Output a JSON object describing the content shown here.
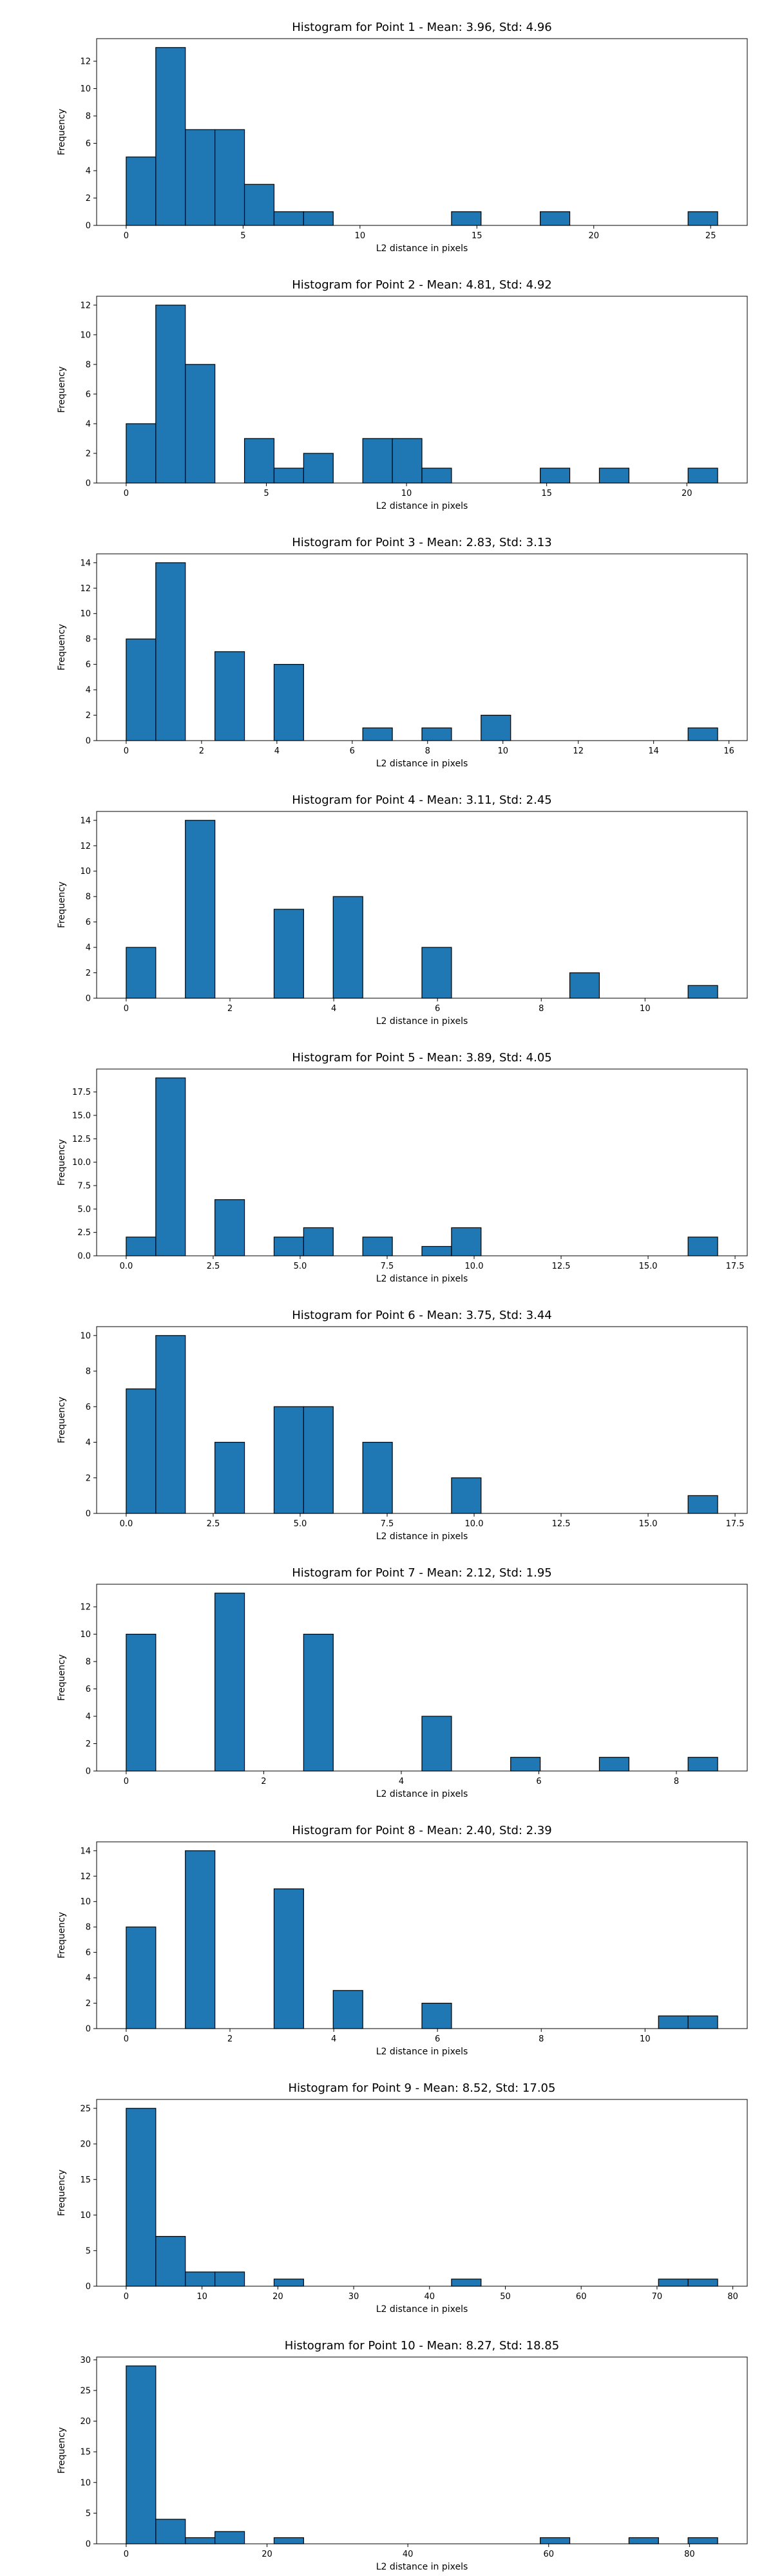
{
  "chart_data": [
    {
      "type": "bar",
      "title": "Histogram for Point 1 - Mean: 3.96, Std: 4.96",
      "xlabel": "L2 distance in pixels",
      "ylabel": "Frequency",
      "bin_min": 0,
      "bin_max": 25.3,
      "bins": 20,
      "values": [
        5,
        13,
        7,
        7,
        3,
        1,
        1,
        0,
        0,
        0,
        0,
        1,
        0,
        0,
        1,
        0,
        0,
        0,
        0,
        1
      ],
      "xlim": [
        -1.265,
        26.565
      ],
      "ylim": [
        0,
        13.65
      ],
      "xticks": [
        0,
        5,
        10,
        15,
        20,
        25
      ],
      "yticks": [
        0,
        2,
        4,
        6,
        8,
        10,
        12
      ],
      "tick_labels_x": [
        "0",
        "5",
        "10",
        "15",
        "20",
        "25"
      ],
      "tick_labels_y": [
        "0",
        "2",
        "4",
        "6",
        "8",
        "10",
        "12"
      ],
      "color": "#1f77b4",
      "edgecolor": "#000000"
    },
    {
      "type": "bar",
      "title": "Histogram for Point 2 - Mean: 4.81, Std: 4.92",
      "xlabel": "L2 distance in pixels",
      "ylabel": "Frequency",
      "bin_min": 0,
      "bin_max": 21.1,
      "bins": 20,
      "values": [
        4,
        12,
        8,
        0,
        3,
        1,
        2,
        0,
        3,
        3,
        1,
        0,
        0,
        0,
        1,
        0,
        1,
        0,
        0,
        1
      ],
      "xlim": [
        -1.055,
        22.155
      ],
      "ylim": [
        0,
        12.6
      ],
      "xticks": [
        0,
        5,
        10,
        15,
        20
      ],
      "yticks": [
        0,
        2,
        4,
        6,
        8,
        10,
        12
      ],
      "tick_labels_x": [
        "0",
        "5",
        "10",
        "15",
        "20"
      ],
      "tick_labels_y": [
        "0",
        "2",
        "4",
        "6",
        "8",
        "10",
        "12"
      ],
      "color": "#1f77b4",
      "edgecolor": "#000000"
    },
    {
      "type": "bar",
      "title": "Histogram for Point 3 - Mean: 2.83, Std: 3.13",
      "xlabel": "L2 distance in pixels",
      "ylabel": "Frequency",
      "bin_min": 0,
      "bin_max": 15.7,
      "bins": 20,
      "values": [
        8,
        14,
        0,
        7,
        0,
        6,
        0,
        0,
        1,
        0,
        1,
        0,
        2,
        0,
        0,
        0,
        0,
        0,
        0,
        1
      ],
      "xlim": [
        -0.785,
        16.485
      ],
      "ylim": [
        0,
        14.7
      ],
      "xticks": [
        0,
        2,
        4,
        6,
        8,
        10,
        12,
        14,
        16
      ],
      "yticks": [
        0,
        2,
        4,
        6,
        8,
        10,
        12,
        14
      ],
      "tick_labels_x": [
        "0",
        "2",
        "4",
        "6",
        "8",
        "10",
        "12",
        "14",
        "16"
      ],
      "tick_labels_y": [
        "0",
        "2",
        "4",
        "6",
        "8",
        "10",
        "12",
        "14"
      ],
      "color": "#1f77b4",
      "edgecolor": "#000000"
    },
    {
      "type": "bar",
      "title": "Histogram for Point 4 - Mean: 3.11, Std: 2.45",
      "xlabel": "L2 distance in pixels",
      "ylabel": "Frequency",
      "bin_min": 0,
      "bin_max": 11.4,
      "bins": 20,
      "values": [
        4,
        0,
        14,
        0,
        0,
        7,
        0,
        8,
        0,
        0,
        4,
        0,
        0,
        0,
        0,
        2,
        0,
        0,
        0,
        1
      ],
      "xlim": [
        -0.57,
        11.97
      ],
      "ylim": [
        0,
        14.7
      ],
      "xticks": [
        0,
        2,
        4,
        6,
        8,
        10
      ],
      "yticks": [
        0,
        2,
        4,
        6,
        8,
        10,
        12,
        14
      ],
      "tick_labels_x": [
        "0",
        "2",
        "4",
        "6",
        "8",
        "10"
      ],
      "tick_labels_y": [
        "0",
        "2",
        "4",
        "6",
        "8",
        "10",
        "12",
        "14"
      ],
      "color": "#1f77b4",
      "edgecolor": "#000000"
    },
    {
      "type": "bar",
      "title": "Histogram for Point 5 - Mean: 3.89, Std: 4.05",
      "xlabel": "L2 distance in pixels",
      "ylabel": "Frequency",
      "bin_min": 0,
      "bin_max": 17.0,
      "bins": 20,
      "values": [
        2,
        19,
        0,
        6,
        0,
        2,
        3,
        0,
        2,
        0,
        1,
        3,
        0,
        0,
        0,
        0,
        0,
        0,
        0,
        2
      ],
      "xlim": [
        -0.85,
        17.85
      ],
      "ylim": [
        0,
        19.95
      ],
      "xticks": [
        0,
        2.5,
        5,
        7.5,
        10,
        12.5,
        15,
        17.5
      ],
      "yticks": [
        0,
        2.5,
        5,
        7.5,
        10,
        12.5,
        15,
        17.5
      ],
      "tick_labels_x": [
        "0.0",
        "2.5",
        "5.0",
        "7.5",
        "10.0",
        "12.5",
        "15.0",
        "17.5"
      ],
      "tick_labels_y": [
        "0.0",
        "2.5",
        "5.0",
        "7.5",
        "10.0",
        "12.5",
        "15.0",
        "17.5"
      ],
      "color": "#1f77b4",
      "edgecolor": "#000000"
    },
    {
      "type": "bar",
      "title": "Histogram for Point 6 - Mean: 3.75, Std: 3.44",
      "xlabel": "L2 distance in pixels",
      "ylabel": "Frequency",
      "bin_min": 0,
      "bin_max": 17.0,
      "bins": 20,
      "values": [
        7,
        10,
        0,
        4,
        0,
        6,
        6,
        0,
        4,
        0,
        0,
        2,
        0,
        0,
        0,
        0,
        0,
        0,
        0,
        1
      ],
      "xlim": [
        -0.85,
        17.85
      ],
      "ylim": [
        0,
        10.5
      ],
      "xticks": [
        0,
        2.5,
        5,
        7.5,
        10,
        12.5,
        15,
        17.5
      ],
      "yticks": [
        0,
        2,
        4,
        6,
        8,
        10
      ],
      "tick_labels_x": [
        "0.0",
        "2.5",
        "5.0",
        "7.5",
        "10.0",
        "12.5",
        "15.0",
        "17.5"
      ],
      "tick_labels_y": [
        "0",
        "2",
        "4",
        "6",
        "8",
        "10"
      ],
      "color": "#1f77b4",
      "edgecolor": "#000000"
    },
    {
      "type": "bar",
      "title": "Histogram for Point 7 - Mean: 2.12, Std: 1.95",
      "xlabel": "L2 distance in pixels",
      "ylabel": "Frequency",
      "bin_min": 0,
      "bin_max": 8.6,
      "bins": 20,
      "values": [
        10,
        0,
        0,
        13,
        0,
        0,
        10,
        0,
        0,
        0,
        4,
        0,
        0,
        1,
        0,
        0,
        1,
        0,
        0,
        1
      ],
      "xlim": [
        -0.43,
        9.03
      ],
      "ylim": [
        0,
        13.65
      ],
      "xticks": [
        0,
        2,
        4,
        6,
        8
      ],
      "yticks": [
        0,
        2,
        4,
        6,
        8,
        10,
        12
      ],
      "tick_labels_x": [
        "0",
        "2",
        "4",
        "6",
        "8"
      ],
      "tick_labels_y": [
        "0",
        "2",
        "4",
        "6",
        "8",
        "10",
        "12"
      ],
      "color": "#1f77b4",
      "edgecolor": "#000000"
    },
    {
      "type": "bar",
      "title": "Histogram for Point 8 - Mean: 2.40, Std: 2.39",
      "xlabel": "L2 distance in pixels",
      "ylabel": "Frequency",
      "bin_min": 0,
      "bin_max": 11.4,
      "bins": 20,
      "values": [
        8,
        0,
        14,
        0,
        0,
        11,
        0,
        3,
        0,
        0,
        2,
        0,
        0,
        0,
        0,
        0,
        0,
        0,
        1,
        1
      ],
      "xlim": [
        -0.57,
        11.97
      ],
      "ylim": [
        0,
        14.7
      ],
      "xticks": [
        0,
        2,
        4,
        6,
        8,
        10
      ],
      "yticks": [
        0,
        2,
        4,
        6,
        8,
        10,
        12,
        14
      ],
      "tick_labels_x": [
        "0",
        "2",
        "4",
        "6",
        "8",
        "10"
      ],
      "tick_labels_y": [
        "0",
        "2",
        "4",
        "6",
        "8",
        "10",
        "12",
        "14"
      ],
      "color": "#1f77b4",
      "edgecolor": "#000000"
    },
    {
      "type": "bar",
      "title": "Histogram for Point 9 - Mean: 8.52, Std: 17.05",
      "xlabel": "L2 distance in pixels",
      "ylabel": "Frequency",
      "bin_min": 0,
      "bin_max": 78.0,
      "bins": 20,
      "values": [
        25,
        7,
        2,
        2,
        0,
        1,
        0,
        0,
        0,
        0,
        0,
        1,
        0,
        0,
        0,
        0,
        0,
        0,
        1,
        1
      ],
      "xlim": [
        -3.9,
        81.9
      ],
      "ylim": [
        0,
        26.25
      ],
      "xticks": [
        0,
        10,
        20,
        30,
        40,
        50,
        60,
        70,
        80
      ],
      "yticks": [
        0,
        5,
        10,
        15,
        20,
        25
      ],
      "tick_labels_x": [
        "0",
        "10",
        "20",
        "30",
        "40",
        "50",
        "60",
        "70",
        "80"
      ],
      "tick_labels_y": [
        "0",
        "5",
        "10",
        "15",
        "20",
        "25"
      ],
      "color": "#1f77b4",
      "edgecolor": "#000000"
    },
    {
      "type": "bar",
      "title": "Histogram for Point 10 - Mean: 8.27, Std: 18.85",
      "xlabel": "L2 distance in pixels",
      "ylabel": "Frequency",
      "bin_min": 0,
      "bin_max": 84.0,
      "bins": 20,
      "values": [
        29,
        4,
        1,
        2,
        0,
        1,
        0,
        0,
        0,
        0,
        0,
        0,
        0,
        0,
        1,
        0,
        0,
        1,
        0,
        1
      ],
      "xlim": [
        -4.2,
        88.2
      ],
      "ylim": [
        0,
        30.45
      ],
      "xticks": [
        0,
        20,
        40,
        60,
        80
      ],
      "yticks": [
        0,
        5,
        10,
        15,
        20,
        25,
        30
      ],
      "tick_labels_x": [
        "0",
        "20",
        "40",
        "60",
        "80"
      ],
      "tick_labels_y": [
        "0",
        "5",
        "10",
        "15",
        "20",
        "25",
        "30"
      ],
      "color": "#1f77b4",
      "edgecolor": "#000000"
    }
  ]
}
